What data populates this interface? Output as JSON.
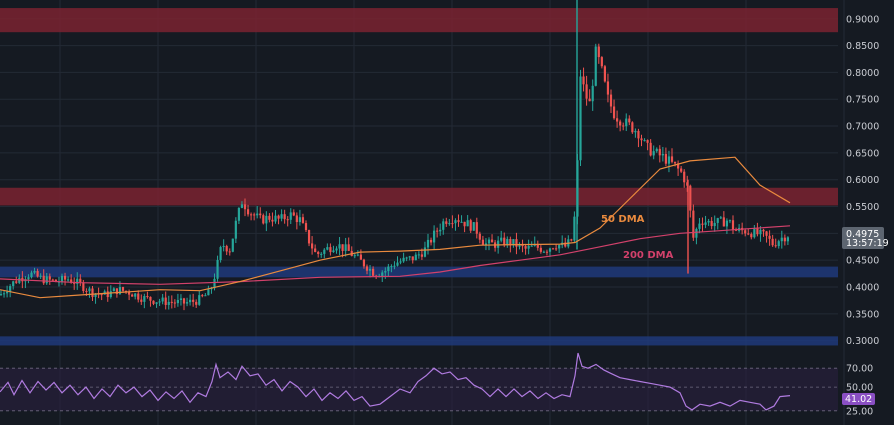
{
  "colors": {
    "background": "#151a22",
    "grid": "#232a35",
    "candle_up": "#26a69a",
    "candle_down": "#ef5350",
    "resistance_zone": "#7a2330",
    "support_zone": "#1f3a7a",
    "ma50": "#e98a3e",
    "ma200": "#d2416b",
    "rsi_line": "#b07be0",
    "rsi_band": "#2a2040",
    "price_tag": "#5d6570"
  },
  "price_axis": {
    "ticks": [
      "0.9000",
      "0.8500",
      "0.8000",
      "0.7500",
      "0.7000",
      "0.6500",
      "0.6000",
      "0.5500",
      "0.5000",
      "0.4500",
      "0.4000",
      "0.3500",
      "0.3000"
    ]
  },
  "current_price": {
    "price": "0.4975",
    "countdown": "13:57:19"
  },
  "rsi": {
    "levels": [
      "70.00",
      "50.00",
      "25.00"
    ],
    "current": "41.02"
  },
  "annotations": {
    "ma50_label": "50 DMA",
    "ma200_label": "200 DMA"
  },
  "chart_data": {
    "type": "candlestick",
    "ylim": [
      0.29,
      0.935
    ],
    "zones": [
      {
        "kind": "resistance",
        "from": 0.875,
        "to": 0.92
      },
      {
        "kind": "resistance",
        "from": 0.552,
        "to": 0.585
      },
      {
        "kind": "support",
        "from": 0.418,
        "to": 0.438
      },
      {
        "kind": "support",
        "from": 0.291,
        "to": 0.308
      }
    ],
    "price_path": [
      [
        0,
        0.385
      ],
      [
        8,
        0.4
      ],
      [
        18,
        0.415
      ],
      [
        30,
        0.425
      ],
      [
        42,
        0.415
      ],
      [
        55,
        0.41
      ],
      [
        68,
        0.415
      ],
      [
        80,
        0.405
      ],
      [
        92,
        0.39
      ],
      [
        105,
        0.385
      ],
      [
        118,
        0.395
      ],
      [
        130,
        0.39
      ],
      [
        142,
        0.38
      ],
      [
        155,
        0.375
      ],
      [
        170,
        0.372
      ],
      [
        185,
        0.37
      ],
      [
        198,
        0.375
      ],
      [
        210,
        0.39
      ],
      [
        216,
        0.43
      ],
      [
        222,
        0.48
      ],
      [
        230,
        0.47
      ],
      [
        236,
        0.52
      ],
      [
        242,
        0.56
      ],
      [
        250,
        0.54
      ],
      [
        260,
        0.525
      ],
      [
        270,
        0.53
      ],
      [
        280,
        0.525
      ],
      [
        290,
        0.535
      ],
      [
        300,
        0.525
      ],
      [
        308,
        0.49
      ],
      [
        316,
        0.46
      ],
      [
        326,
        0.47
      ],
      [
        336,
        0.48
      ],
      [
        346,
        0.47
      ],
      [
        356,
        0.455
      ],
      [
        366,
        0.44
      ],
      [
        375,
        0.425
      ],
      [
        385,
        0.43
      ],
      [
        395,
        0.445
      ],
      [
        405,
        0.45
      ],
      [
        415,
        0.455
      ],
      [
        425,
        0.47
      ],
      [
        435,
        0.5
      ],
      [
        445,
        0.525
      ],
      [
        455,
        0.53
      ],
      [
        465,
        0.52
      ],
      [
        475,
        0.51
      ],
      [
        485,
        0.48
      ],
      [
        495,
        0.48
      ],
      [
        505,
        0.485
      ],
      [
        515,
        0.48
      ],
      [
        525,
        0.47
      ],
      [
        535,
        0.475
      ],
      [
        545,
        0.47
      ],
      [
        555,
        0.48
      ],
      [
        565,
        0.475
      ],
      [
        573,
        0.49
      ],
      [
        577,
        0.6
      ],
      [
        580,
        0.8
      ],
      [
        585,
        0.76
      ],
      [
        590,
        0.74
      ],
      [
        596,
        0.84
      ],
      [
        602,
        0.8
      ],
      [
        608,
        0.75
      ],
      [
        615,
        0.72
      ],
      [
        622,
        0.71
      ],
      [
        630,
        0.7
      ],
      [
        638,
        0.69
      ],
      [
        646,
        0.66
      ],
      [
        655,
        0.65
      ],
      [
        665,
        0.64
      ],
      [
        675,
        0.625
      ],
      [
        683,
        0.61
      ],
      [
        688,
        0.58
      ],
      [
        693,
        0.49
      ],
      [
        700,
        0.525
      ],
      [
        710,
        0.52
      ],
      [
        720,
        0.52
      ],
      [
        728,
        0.525
      ],
      [
        735,
        0.505
      ],
      [
        745,
        0.505
      ],
      [
        755,
        0.5
      ],
      [
        765,
        0.495
      ],
      [
        773,
        0.48
      ],
      [
        780,
        0.49
      ],
      [
        788,
        0.4975
      ]
    ],
    "spikes": [
      {
        "date_index": 577,
        "high": 0.935,
        "low": 0.47
      },
      {
        "date_index": 688,
        "high": 0.6,
        "low": 0.425
      }
    ],
    "series": [
      {
        "name": "50 DMA",
        "points": [
          [
            0,
            0.395
          ],
          [
            40,
            0.38
          ],
          [
            80,
            0.385
          ],
          [
            120,
            0.39
          ],
          [
            160,
            0.395
          ],
          [
            200,
            0.393
          ],
          [
            240,
            0.41
          ],
          [
            280,
            0.43
          ],
          [
            320,
            0.45
          ],
          [
            360,
            0.465
          ],
          [
            400,
            0.467
          ],
          [
            440,
            0.47
          ],
          [
            480,
            0.478
          ],
          [
            520,
            0.479
          ],
          [
            560,
            0.48
          ],
          [
            575,
            0.483
          ],
          [
            600,
            0.51
          ],
          [
            630,
            0.565
          ],
          [
            660,
            0.62
          ],
          [
            690,
            0.635
          ],
          [
            735,
            0.642
          ],
          [
            760,
            0.59
          ],
          [
            790,
            0.557
          ]
        ]
      },
      {
        "name": "200 DMA",
        "points": [
          [
            0,
            0.415
          ],
          [
            80,
            0.408
          ],
          [
            160,
            0.405
          ],
          [
            240,
            0.41
          ],
          [
            320,
            0.418
          ],
          [
            400,
            0.42
          ],
          [
            440,
            0.428
          ],
          [
            480,
            0.44
          ],
          [
            520,
            0.45
          ],
          [
            560,
            0.46
          ],
          [
            600,
            0.475
          ],
          [
            640,
            0.49
          ],
          [
            680,
            0.5
          ],
          [
            720,
            0.505
          ],
          [
            790,
            0.514
          ]
        ]
      },
      {
        "name": "RSI",
        "ylim": [
          10,
          85
        ],
        "points": [
          [
            0,
            45
          ],
          [
            8,
            55
          ],
          [
            14,
            42
          ],
          [
            22,
            57
          ],
          [
            30,
            44
          ],
          [
            38,
            56
          ],
          [
            46,
            47
          ],
          [
            54,
            55
          ],
          [
            62,
            44
          ],
          [
            70,
            52
          ],
          [
            78,
            42
          ],
          [
            86,
            50
          ],
          [
            94,
            38
          ],
          [
            102,
            48
          ],
          [
            110,
            40
          ],
          [
            118,
            52
          ],
          [
            126,
            44
          ],
          [
            134,
            50
          ],
          [
            142,
            40
          ],
          [
            150,
            47
          ],
          [
            158,
            36
          ],
          [
            166,
            45
          ],
          [
            174,
            38
          ],
          [
            182,
            46
          ],
          [
            190,
            34
          ],
          [
            198,
            44
          ],
          [
            206,
            40
          ],
          [
            212,
            56
          ],
          [
            216,
            74
          ],
          [
            220,
            60
          ],
          [
            228,
            66
          ],
          [
            236,
            58
          ],
          [
            242,
            72
          ],
          [
            250,
            62
          ],
          [
            258,
            64
          ],
          [
            266,
            52
          ],
          [
            274,
            58
          ],
          [
            282,
            46
          ],
          [
            290,
            56
          ],
          [
            298,
            50
          ],
          [
            306,
            40
          ],
          [
            314,
            48
          ],
          [
            322,
            36
          ],
          [
            330,
            44
          ],
          [
            338,
            38
          ],
          [
            346,
            46
          ],
          [
            354,
            36
          ],
          [
            362,
            40
          ],
          [
            370,
            30
          ],
          [
            380,
            32
          ],
          [
            390,
            40
          ],
          [
            400,
            48
          ],
          [
            410,
            44
          ],
          [
            418,
            56
          ],
          [
            426,
            62
          ],
          [
            434,
            70
          ],
          [
            442,
            64
          ],
          [
            450,
            66
          ],
          [
            458,
            58
          ],
          [
            466,
            60
          ],
          [
            474,
            52
          ],
          [
            482,
            48
          ],
          [
            490,
            40
          ],
          [
            498,
            48
          ],
          [
            506,
            40
          ],
          [
            514,
            48
          ],
          [
            522,
            40
          ],
          [
            530,
            46
          ],
          [
            538,
            38
          ],
          [
            546,
            44
          ],
          [
            554,
            38
          ],
          [
            562,
            42
          ],
          [
            570,
            40
          ],
          [
            575,
            62
          ],
          [
            578,
            86
          ],
          [
            582,
            72
          ],
          [
            588,
            70
          ],
          [
            596,
            74
          ],
          [
            604,
            68
          ],
          [
            612,
            64
          ],
          [
            620,
            60
          ],
          [
            630,
            58
          ],
          [
            640,
            56
          ],
          [
            650,
            54
          ],
          [
            660,
            52
          ],
          [
            670,
            50
          ],
          [
            680,
            44
          ],
          [
            686,
            30
          ],
          [
            692,
            26
          ],
          [
            700,
            32
          ],
          [
            710,
            30
          ],
          [
            720,
            34
          ],
          [
            730,
            30
          ],
          [
            740,
            36
          ],
          [
            750,
            34
          ],
          [
            760,
            32
          ],
          [
            766,
            26
          ],
          [
            774,
            30
          ],
          [
            780,
            40
          ],
          [
            790,
            41.02
          ]
        ]
      }
    ]
  }
}
